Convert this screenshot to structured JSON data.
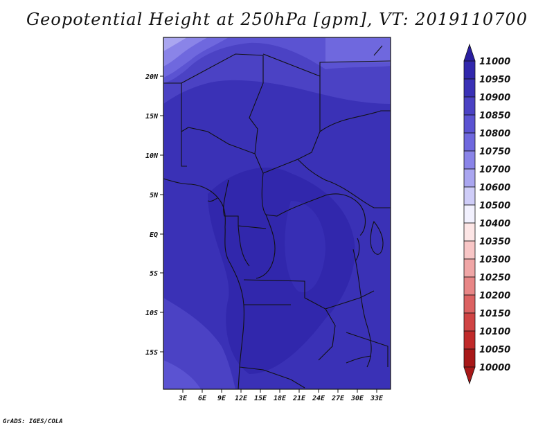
{
  "title": "Geopotential Height at 250hPa [gpm], VT: 2019110700",
  "credit": "GrADS: IGES/COLA",
  "map": {
    "lon_labels": [
      "3E",
      "6E",
      "9E",
      "12E",
      "15E",
      "18E",
      "21E",
      "24E",
      "27E",
      "30E",
      "33E"
    ],
    "lat_labels": [
      "20N",
      "15N",
      "10N",
      "5N",
      "EQ",
      "5S",
      "10S",
      "15S"
    ]
  },
  "colorbar": {
    "levels": [
      "11000",
      "10950",
      "10900",
      "10850",
      "10800",
      "10750",
      "10700",
      "10600",
      "10500",
      "10400",
      "10350",
      "10300",
      "10250",
      "10200",
      "10150",
      "10100",
      "10050",
      "10000"
    ],
    "colors": [
      "#2a1ea0",
      "#3127ac",
      "#3a31b6",
      "#4b42c4",
      "#5b53d2",
      "#6f68de",
      "#8a84e8",
      "#aaa6f0",
      "#cfcdf8",
      "#f2f1fe",
      "#fde6e6",
      "#f8c6c6",
      "#f0a6a6",
      "#e88686",
      "#dc6262",
      "#d04444",
      "#c02a2a",
      "#a81818"
    ]
  }
}
